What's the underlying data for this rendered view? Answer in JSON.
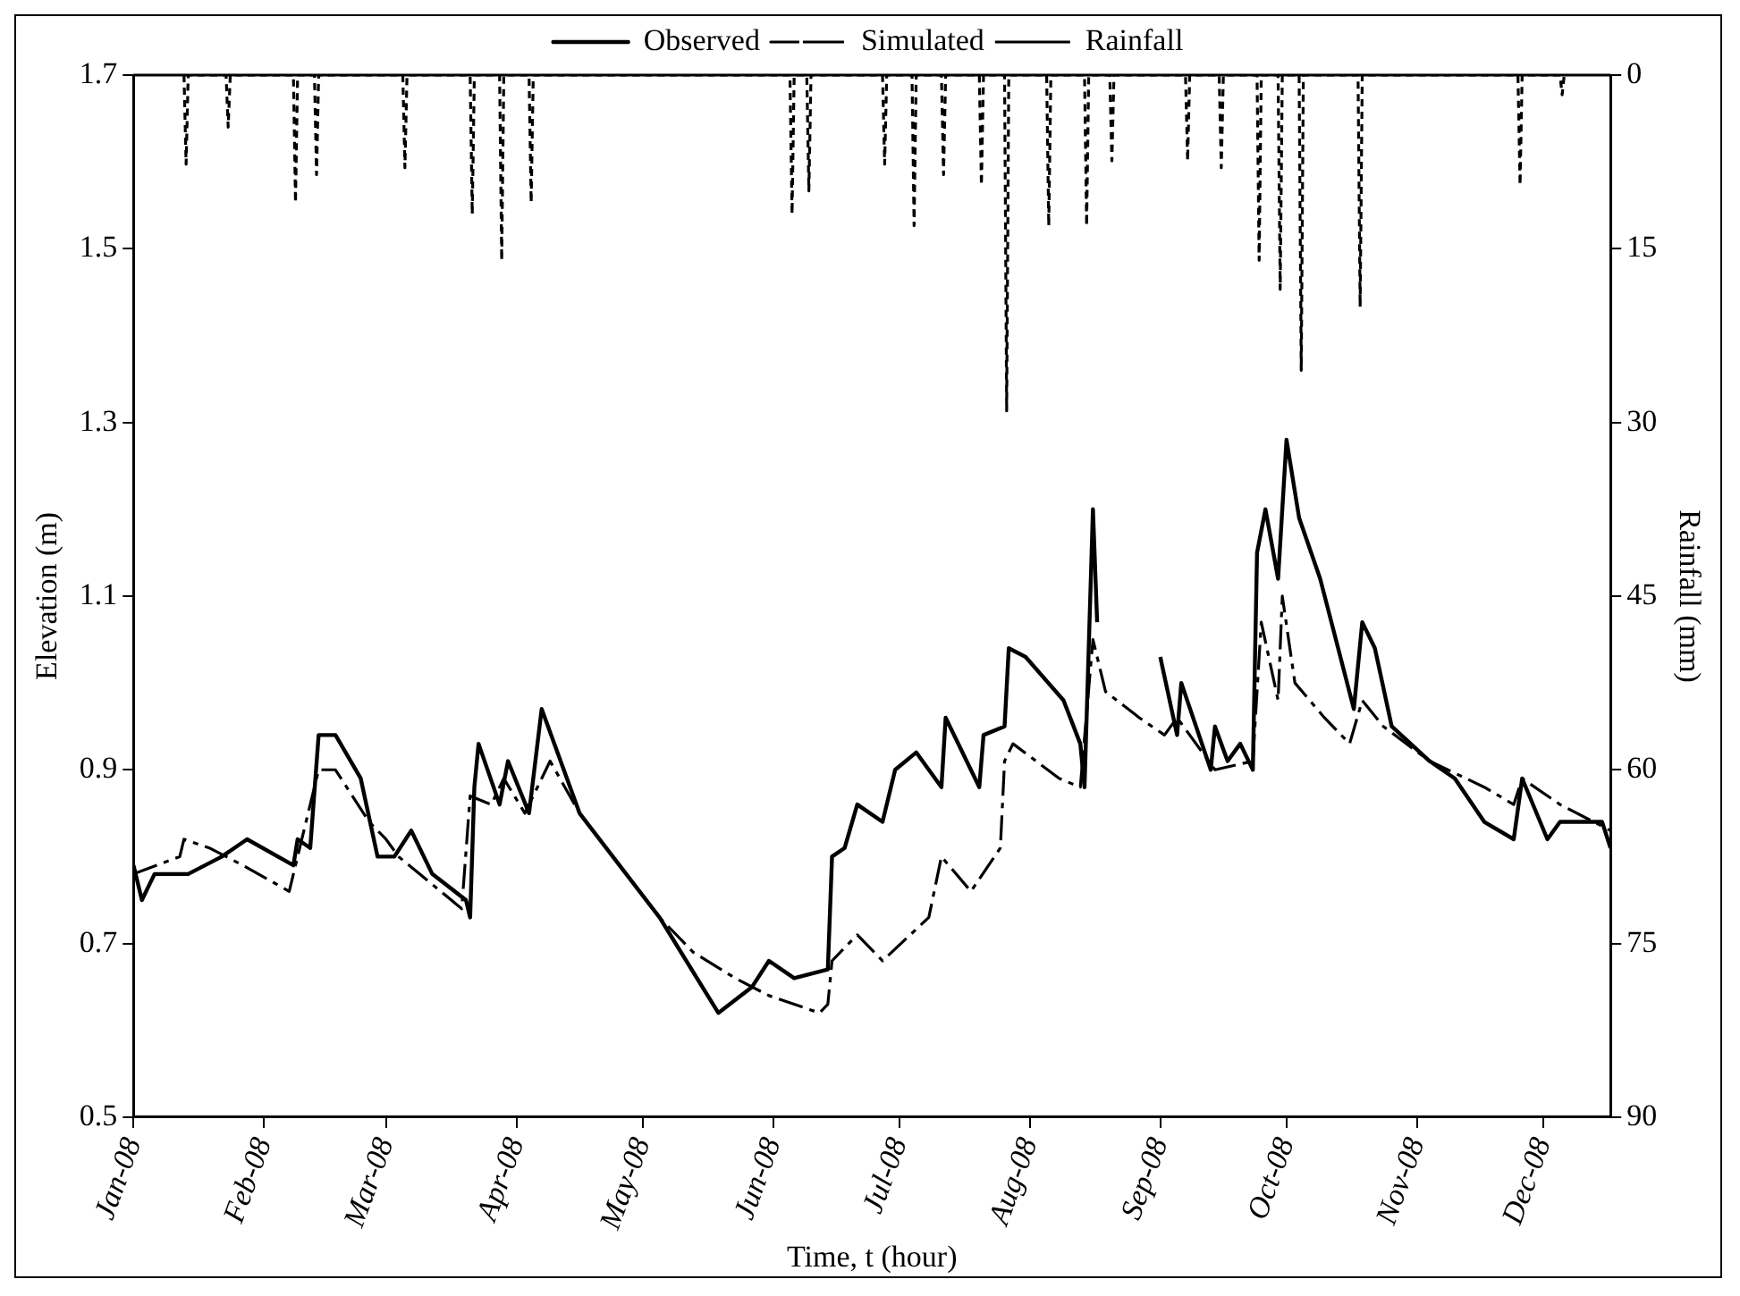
{
  "chart_data": {
    "type": "line",
    "xlabel": "Time, t (hour)",
    "ylabel": "Elevation (m)",
    "y2label": "Rainfall (mm)",
    "xlim": [
      "2008-01-01",
      "2008-12-17"
    ],
    "xticks": [
      {
        "value": "2008-01-01",
        "label": "Jan-08"
      },
      {
        "value": "2008-02-01",
        "label": "Feb-08"
      },
      {
        "value": "2008-03-01",
        "label": "Mar-08"
      },
      {
        "value": "2008-04-01",
        "label": "Apr-08"
      },
      {
        "value": "2008-05-01",
        "label": "May-08"
      },
      {
        "value": "2008-06-01",
        "label": "Jun-08"
      },
      {
        "value": "2008-07-01",
        "label": "Jul-08"
      },
      {
        "value": "2008-08-01",
        "label": "Aug-08"
      },
      {
        "value": "2008-09-01",
        "label": "Sep-08"
      },
      {
        "value": "2008-10-01",
        "label": "Oct-08"
      },
      {
        "value": "2008-11-01",
        "label": "Nov-08"
      },
      {
        "value": "2008-12-01",
        "label": "Dec-08"
      }
    ],
    "ylim": [
      0.5,
      1.7
    ],
    "yticks": [
      0.5,
      0.7,
      0.9,
      1.1,
      1.3,
      1.5,
      1.7
    ],
    "y2lim": [
      90,
      0
    ],
    "y2ticks": [
      0,
      15,
      30,
      45,
      60,
      75,
      90
    ],
    "legend": "top",
    "marker": "none",
    "series": [
      {
        "name": "Observed",
        "color": "#000000",
        "line_style": "solid",
        "x": [
          "2008-01-01",
          "2008-01-03",
          "2008-01-06",
          "2008-01-14",
          "2008-01-22",
          "2008-01-28",
          "2008-02-08",
          "2008-02-09",
          "2008-02-12",
          "2008-02-14",
          "2008-02-18",
          "2008-02-24",
          "2008-02-28",
          "2008-03-03",
          "2008-03-07",
          "2008-03-12",
          "2008-03-20",
          "2008-03-21",
          "2008-03-22",
          "2008-03-23",
          "2008-03-28",
          "2008-03-30",
          "2008-04-04",
          "2008-04-07",
          "2008-04-16",
          "2008-05-05",
          "2008-05-19",
          "2008-05-27",
          "2008-05-31",
          "2008-06-06",
          "2008-06-14",
          "2008-06-15",
          "2008-06-18",
          "2008-06-21",
          "2008-06-27",
          "2008-06-30",
          "2008-07-05",
          "2008-07-11",
          "2008-07-12",
          "2008-07-20",
          "2008-07-21",
          "2008-07-26",
          "2008-07-27",
          "2008-07-31",
          "2008-08-09",
          "2008-08-13",
          "2008-08-14",
          "2008-08-16",
          "2008-08-17",
          "2008-08-20",
          "2008-09-01",
          "2008-09-05",
          "2008-09-06",
          "2008-09-13",
          "2008-09-14",
          "2008-09-17",
          "2008-09-20",
          "2008-09-23",
          "2008-09-24",
          "2008-09-26",
          "2008-09-29",
          "2008-10-01",
          "2008-10-04",
          "2008-10-09",
          "2008-10-17",
          "2008-10-19",
          "2008-10-22",
          "2008-10-26",
          "2008-11-04",
          "2008-11-10",
          "2008-11-17",
          "2008-11-24",
          "2008-11-26",
          "2008-12-02",
          "2008-12-05",
          "2008-12-15",
          "2008-12-17"
        ],
        "values": [
          0.79,
          0.75,
          0.78,
          0.78,
          0.8,
          0.82,
          0.79,
          0.82,
          0.81,
          0.94,
          0.94,
          0.89,
          0.8,
          0.8,
          0.83,
          0.78,
          0.75,
          0.73,
          0.88,
          0.93,
          0.86,
          0.91,
          0.85,
          0.97,
          0.85,
          0.73,
          0.62,
          0.65,
          0.68,
          0.66,
          0.67,
          0.8,
          0.81,
          0.86,
          0.84,
          0.9,
          0.92,
          0.88,
          0.96,
          0.88,
          0.94,
          0.95,
          1.04,
          1.03,
          0.98,
          0.93,
          0.88,
          1.2,
          1.07,
          null,
          1.03,
          0.94,
          1.0,
          0.9,
          0.95,
          0.91,
          0.93,
          0.9,
          1.15,
          1.2,
          1.12,
          1.28,
          1.19,
          1.12,
          0.97,
          1.07,
          1.04,
          0.95,
          0.91,
          0.89,
          0.84,
          0.82,
          0.89,
          0.82,
          0.84,
          0.84,
          0.81
        ]
      },
      {
        "name": "Simulated",
        "color": "#000000",
        "line_style": "dashed",
        "x": [
          "2008-01-01",
          "2008-01-12",
          "2008-01-13",
          "2008-01-19",
          "2008-01-27",
          "2008-02-07",
          "2008-02-14",
          "2008-02-18",
          "2008-02-26",
          "2008-03-01",
          "2008-03-04",
          "2008-03-19",
          "2008-03-21",
          "2008-03-26",
          "2008-03-29",
          "2008-04-03",
          "2008-04-09",
          "2008-04-16",
          "2008-05-05",
          "2008-05-13",
          "2008-05-23",
          "2008-05-31",
          "2008-06-12",
          "2008-06-14",
          "2008-06-15",
          "2008-06-21",
          "2008-06-27",
          "2008-07-08",
          "2008-07-11",
          "2008-07-18",
          "2008-07-25",
          "2008-07-26",
          "2008-07-28",
          "2008-08-08",
          "2008-08-13",
          "2008-08-16",
          "2008-08-19",
          "2008-08-27",
          "2008-09-02",
          "2008-09-05",
          "2008-09-14",
          "2008-09-23",
          "2008-09-25",
          "2008-09-29",
          "2008-09-30",
          "2008-10-03",
          "2008-10-10",
          "2008-10-16",
          "2008-10-19",
          "2008-10-24",
          "2008-11-04",
          "2008-11-17",
          "2008-11-24",
          "2008-11-26",
          "2008-12-05",
          "2008-12-17"
        ],
        "values": [
          0.78,
          0.8,
          0.82,
          0.81,
          0.79,
          0.76,
          0.9,
          0.9,
          0.84,
          0.82,
          0.8,
          0.74,
          0.87,
          0.86,
          0.89,
          0.85,
          0.91,
          0.85,
          0.73,
          0.69,
          0.66,
          0.64,
          0.62,
          0.63,
          0.68,
          0.71,
          0.68,
          0.73,
          0.8,
          0.76,
          0.81,
          0.91,
          0.93,
          0.89,
          0.88,
          1.05,
          0.99,
          0.96,
          0.94,
          0.96,
          0.9,
          0.91,
          1.07,
          0.98,
          1.1,
          1.0,
          0.96,
          0.93,
          0.98,
          0.95,
          0.91,
          0.88,
          0.86,
          0.89,
          0.86,
          0.83
        ]
      },
      {
        "name": "Rainfall",
        "color": "#000000",
        "line_style": "dotted",
        "axis": "y2",
        "x": [
          "2008-01-13",
          "2008-01-13T12:00",
          "2008-01-14",
          "2008-01-23",
          "2008-01-23T12:00",
          "2008-01-24",
          "2008-02-08",
          "2008-02-08T12:00",
          "2008-02-09",
          "2008-02-13",
          "2008-02-13T12:00",
          "2008-02-14",
          "2008-03-05",
          "2008-03-05T12:00",
          "2008-03-06",
          "2008-03-21",
          "2008-03-21T12:00",
          "2008-03-22",
          "2008-03-28",
          "2008-03-28T12:00",
          "2008-03-29",
          "2008-04-04",
          "2008-04-04T12:00",
          "2008-04-05",
          "2008-06-05",
          "2008-06-05T12:00",
          "2008-06-06",
          "2008-06-09",
          "2008-06-09T12:00",
          "2008-06-10",
          "2008-06-27",
          "2008-06-27T12:00",
          "2008-06-28",
          "2008-07-04",
          "2008-07-04T12:00",
          "2008-07-05",
          "2008-07-11",
          "2008-07-11T12:00",
          "2008-07-12",
          "2008-07-20",
          "2008-07-20T12:00",
          "2008-07-21",
          "2008-07-26",
          "2008-07-26T12:00",
          "2008-07-27",
          "2008-08-05",
          "2008-08-05T12:00",
          "2008-08-06",
          "2008-08-14",
          "2008-08-14T12:00",
          "2008-08-15",
          "2008-08-20",
          "2008-08-20T12:00",
          "2008-08-21",
          "2008-09-07",
          "2008-09-07T12:00",
          "2008-09-08",
          "2008-09-15",
          "2008-09-15T12:00",
          "2008-09-16",
          "2008-09-24",
          "2008-09-24T12:00",
          "2008-09-25",
          "2008-09-29",
          "2008-09-29T12:00",
          "2008-09-30",
          "2008-10-04",
          "2008-10-04T12:00",
          "2008-10-05",
          "2008-10-18",
          "2008-10-18T12:00",
          "2008-10-19",
          "2008-11-25",
          "2008-11-25T12:00",
          "2008-11-26",
          "2008-12-05",
          "2008-12-05T12:00",
          "2008-12-06"
        ],
        "values": [
          0,
          7.7,
          0,
          0,
          4.5,
          0,
          0,
          11,
          0,
          0,
          8.6,
          0,
          0,
          8,
          0,
          0,
          12,
          0,
          0,
          16,
          0,
          0,
          11,
          0,
          0,
          12,
          0,
          0,
          10,
          0,
          0,
          7.7,
          0,
          0,
          13,
          0,
          0,
          8.6,
          0,
          0,
          9.5,
          0,
          0,
          29,
          0,
          0,
          13,
          0,
          0,
          13,
          0,
          0,
          7.4,
          0,
          0,
          7.4,
          0,
          0,
          8,
          0,
          0,
          16,
          0,
          0,
          18.5,
          0,
          0,
          25.5,
          0,
          0,
          20,
          0,
          0,
          9.5,
          0,
          0,
          1.7,
          0
        ]
      }
    ]
  }
}
